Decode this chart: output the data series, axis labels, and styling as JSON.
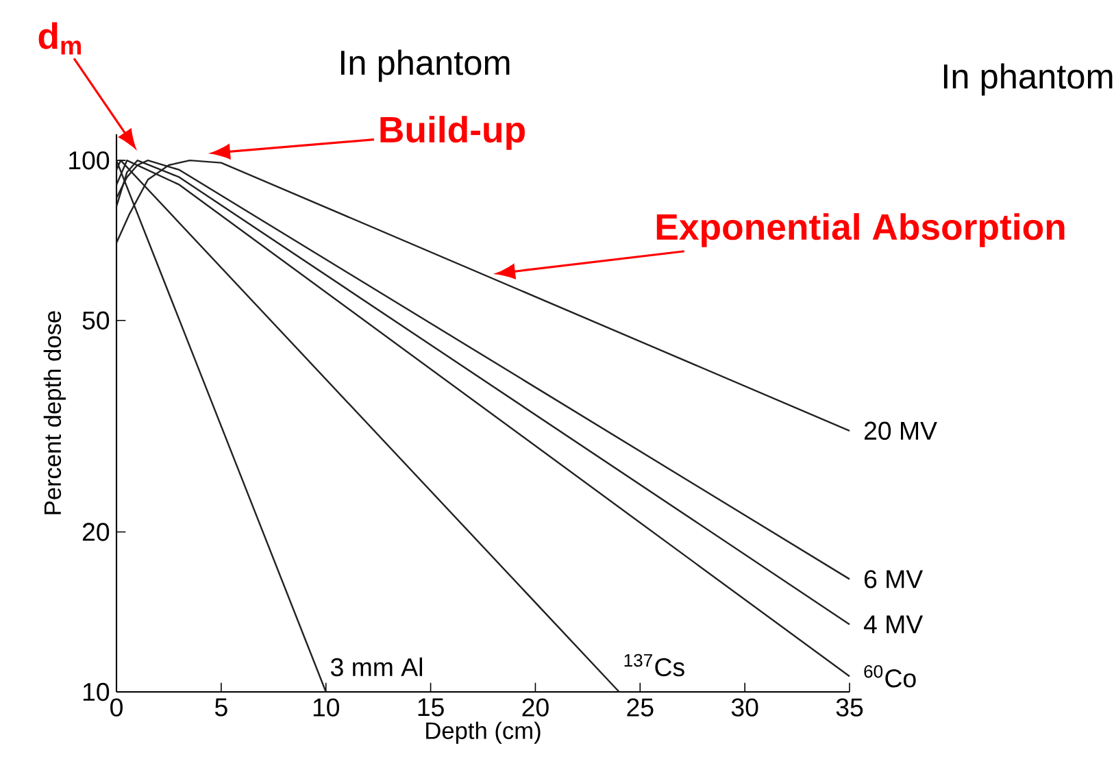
{
  "chart_data": {
    "type": "line",
    "xlabel": "Depth (cm)",
    "ylabel": "Percent depth dose",
    "log": "y",
    "xlim": [
      0,
      35
    ],
    "ylim": [
      10,
      112
    ],
    "xticks": [
      0,
      5,
      10,
      15,
      20,
      25,
      30,
      35
    ],
    "yticks": [
      10,
      20,
      50,
      100
    ],
    "series": [
      {
        "name": "20 MV",
        "color": "#222222",
        "x": [
          0,
          0.6,
          1.5,
          2.5,
          3.5,
          5,
          35
        ],
        "values": [
          70,
          79,
          92,
          98,
          100,
          99,
          31
        ]
      },
      {
        "name": "6 MV",
        "color": "#222222",
        "x": [
          0,
          0.5,
          1.0,
          1.5,
          3,
          35
        ],
        "values": [
          85,
          93,
          98,
          100,
          96,
          16.3
        ]
      },
      {
        "name": "4 MV",
        "color": "#222222",
        "x": [
          0,
          0.5,
          1.0,
          3,
          35
        ],
        "values": [
          82,
          95,
          100,
          93,
          13.4
        ]
      },
      {
        "name": "$^{60}$Co",
        "color": "#222222",
        "x": [
          0,
          0.5,
          3,
          35
        ],
        "values": [
          90,
          100,
          90,
          10.7
        ]
      },
      {
        "name": "$^{137}$Cs",
        "color": "#222222",
        "x": [
          0,
          0.2,
          24
        ],
        "values": [
          96,
          100,
          10
        ]
      },
      {
        "name": "3 mm Al",
        "color": "#222222",
        "x": [
          0,
          10
        ],
        "values": [
          100,
          10
        ]
      }
    ],
    "annotations": [
      "d$_{m}$",
      "Build-up",
      "Exponential Absorption",
      "In phantom",
      "In phantom"
    ]
  }
}
